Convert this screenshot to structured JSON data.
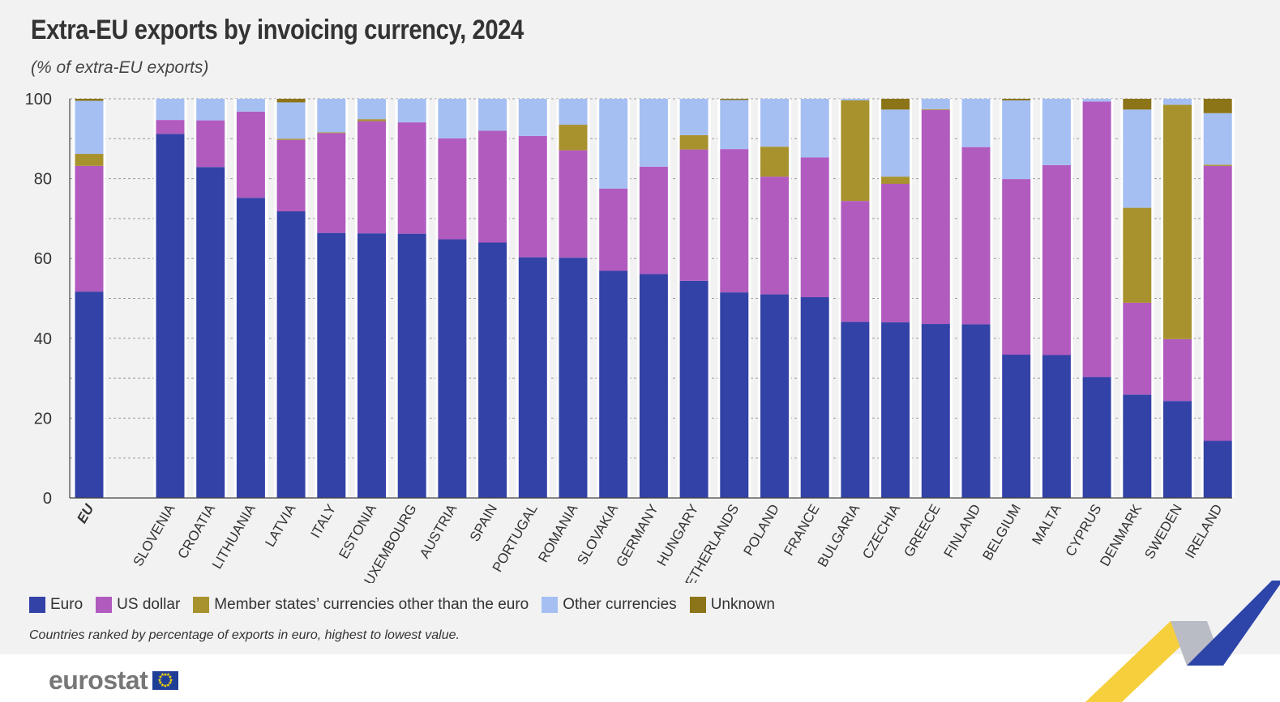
{
  "title": "Extra-EU exports by invoicing currency, 2024",
  "subtitle": "(% of extra-EU exports)",
  "footnote": "Countries ranked by percentage of exports in euro, highest to lowest value.",
  "logo": "eurostat",
  "colors": {
    "euro": "#3342a6",
    "us_dollar": "#b15bbf",
    "member_states": "#a8922d",
    "other": "#a5bff3",
    "unknown": "#8c7418",
    "background": "#f2f2f2",
    "grid": "#9a9a9a"
  },
  "legend": [
    {
      "label": "Euro",
      "color": "#3342a6"
    },
    {
      "label": "US dollar",
      "color": "#b15bbf"
    },
    {
      "label": "Member states’ currencies other than the euro",
      "color": "#a8922d"
    },
    {
      "label": "Other currencies",
      "color": "#a5bff3"
    },
    {
      "label": "Unknown",
      "color": "#8c7418"
    }
  ],
  "chart_data": {
    "type": "bar",
    "stacked": true,
    "title": "Extra-EU exports by invoicing currency, 2024",
    "subtitle": "(% of extra-EU exports)",
    "ylim": [
      0,
      100
    ],
    "yticks": [
      0,
      20,
      40,
      60,
      80,
      100
    ],
    "grid": true,
    "legend_position": "bottom-left",
    "categories": [
      "EU",
      "SLOVENIA",
      "CROATIA",
      "LITHUANIA",
      "LATVIA",
      "ITALY",
      "ESTONIA",
      "LUXEMBOURG",
      "AUSTRIA",
      "SPAIN",
      "PORTUGAL",
      "ROMANIA",
      "SLOVAKIA",
      "GERMANY",
      "HUNGARY",
      "NETHERLANDS",
      "POLAND",
      "FRANCE",
      "BULGARIA",
      "CZECHIA",
      "GREECE",
      "FINLAND",
      "BELGIUM",
      "MALTA",
      "CYPRUS",
      "DENMARK",
      "SWEDEN",
      "IRELAND"
    ],
    "series": [
      {
        "name": "Euro",
        "values": [
          51.7,
          91.2,
          82.9,
          75.2,
          71.8,
          66.4,
          66.3,
          66.2,
          64.8,
          64.0,
          60.3,
          60.2,
          56.9,
          56.1,
          54.4,
          51.5,
          51.0,
          50.3,
          44.1,
          44.0,
          43.6,
          43.5,
          35.9,
          35.8,
          30.3,
          25.9,
          24.3,
          14.3
        ]
      },
      {
        "name": "US dollar",
        "values": [
          31.5,
          3.5,
          11.7,
          21.6,
          17.9,
          25.0,
          28.1,
          27.9,
          25.3,
          28.0,
          30.4,
          26.9,
          20.6,
          26.9,
          32.9,
          35.9,
          29.5,
          35.0,
          30.3,
          34.7,
          53.6,
          44.4,
          44.0,
          47.6,
          69.0,
          23.0,
          15.5,
          68.9
        ]
      },
      {
        "name": "Member states’ currencies other than the euro",
        "values": [
          3.0,
          0,
          0,
          0,
          0.3,
          0.2,
          0.5,
          0,
          0,
          0,
          0,
          6.4,
          0,
          0,
          3.6,
          0,
          7.5,
          0,
          25.2,
          1.8,
          0.2,
          0,
          0,
          0,
          0,
          23.8,
          58.7,
          0.3
        ]
      },
      {
        "name": "Other currencies",
        "values": [
          13.3,
          5.3,
          5.4,
          3.2,
          9.1,
          8.4,
          5.1,
          5.9,
          9.9,
          8.0,
          9.3,
          6.5,
          22.5,
          17.0,
          9.1,
          12.3,
          12.0,
          14.7,
          0.4,
          16.8,
          2.6,
          12.1,
          19.7,
          16.6,
          0.7,
          24.6,
          1.5,
          12.9
        ]
      },
      {
        "name": "Unknown",
        "values": [
          0.5,
          0,
          0,
          0,
          0.9,
          0,
          0,
          0,
          0,
          0,
          0,
          0,
          0,
          0,
          0,
          0.3,
          0,
          0,
          0,
          2.7,
          0,
          0,
          0.4,
          0,
          0,
          2.7,
          0,
          3.6
        ]
      }
    ]
  }
}
